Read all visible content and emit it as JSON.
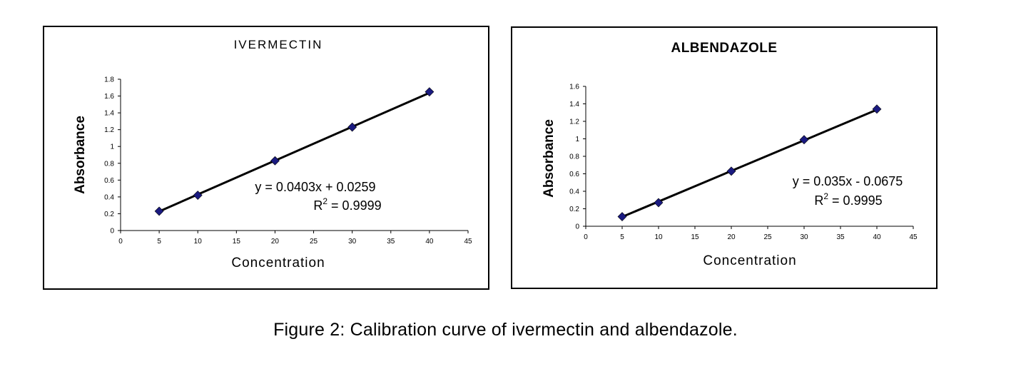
{
  "chart_data": [
    {
      "type": "scatter",
      "title": "IVERMECTIN",
      "xlabel": "Concentration",
      "ylabel": "Absorbance",
      "xlim": [
        0,
        45
      ],
      "ylim": [
        0,
        1.8
      ],
      "xticks": [
        "0",
        "5",
        "10",
        "15",
        "20",
        "25",
        "30",
        "35",
        "40",
        "45"
      ],
      "yticks": [
        "0",
        "0.2",
        "0.4",
        "0.6",
        "0.8",
        "1",
        "1.2",
        "1.4",
        "1.6",
        "1.8"
      ],
      "x": [
        5,
        10,
        20,
        30,
        40
      ],
      "y": [
        0.23,
        0.42,
        0.83,
        1.23,
        1.65
      ],
      "trendline": {
        "slope": 0.0403,
        "intercept": 0.0259
      },
      "equation": "y = 0.0403x + 0.0259",
      "r2_label": "R",
      "r2_sup": "2",
      "r2_value": " = 0.9999",
      "grid": false,
      "legend": "none",
      "marker_color": "#1a1a80",
      "line_color": "#000000"
    },
    {
      "type": "scatter",
      "title": "ALBENDAZOLE",
      "xlabel": "Concentration",
      "ylabel": "Absorbance",
      "xlim": [
        0,
        45
      ],
      "ylim": [
        0,
        1.6
      ],
      "xticks": [
        "0",
        "5",
        "10",
        "15",
        "20",
        "25",
        "30",
        "35",
        "40",
        "45"
      ],
      "yticks": [
        "0",
        "0.2",
        "0.4",
        "0.6",
        "0.8",
        "1",
        "1.2",
        "1.4",
        "1.6"
      ],
      "x": [
        5,
        10,
        20,
        30,
        40
      ],
      "y": [
        0.11,
        0.27,
        0.63,
        0.99,
        1.34
      ],
      "trendline": {
        "slope": 0.035,
        "intercept": -0.0675
      },
      "equation": "y = 0.035x - 0.0675",
      "r2_label": "R",
      "r2_sup": "2",
      "r2_value": " = 0.9995",
      "grid": false,
      "legend": "none",
      "marker_color": "#1a1a80",
      "line_color": "#000000"
    }
  ],
  "caption": "Figure 2: Calibration curve of ivermectin and albendazole."
}
